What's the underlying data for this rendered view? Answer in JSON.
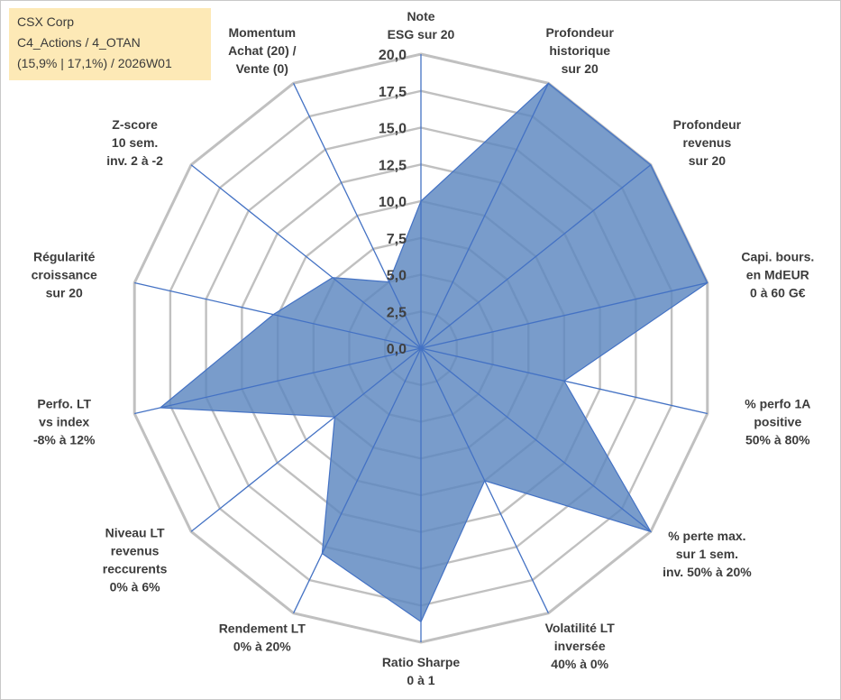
{
  "info_box": {
    "line1": "CSX Corp",
    "line2": "C4_Actions / 4_OTAN",
    "line3": "(15,9% | 17,1%) / 2026W01"
  },
  "colors": {
    "fill": "#5b86bf",
    "stroke": "#4472c4",
    "spoke": "#4472c4",
    "grid": "#c0c0c0",
    "info_bg": "#fde9b6"
  },
  "chart_data": {
    "type": "radar",
    "title": "",
    "rmin": 0,
    "rmax": 20,
    "ticks": [
      "0,0",
      "2,5",
      "5,0",
      "7,5",
      "10,0",
      "12,5",
      "15,0",
      "17,5",
      "20,0"
    ],
    "tick_values": [
      0,
      2.5,
      5,
      7.5,
      10,
      12.5,
      15,
      17.5,
      20
    ],
    "categories": [
      {
        "lines": [
          "Note",
          "ESG sur 20"
        ]
      },
      {
        "lines": [
          "Profondeur",
          "historique",
          "sur 20"
        ]
      },
      {
        "lines": [
          "Profondeur",
          "revenus",
          "sur 20"
        ]
      },
      {
        "lines": [
          "Capi. bours.",
          "en MdEUR",
          "0 à 60 G€"
        ]
      },
      {
        "lines": [
          "% perfo 1A",
          "positive",
          "50% à 80%"
        ]
      },
      {
        "lines": [
          "% perte max.",
          "sur 1 sem.",
          "inv. 50% à 20%"
        ]
      },
      {
        "lines": [
          "Volatilité LT",
          "inversée",
          "40% à 0%"
        ]
      },
      {
        "lines": [
          "Ratio Sharpe",
          "0 à 1"
        ]
      },
      {
        "lines": [
          "Rendement LT",
          "0% à 20%"
        ]
      },
      {
        "lines": [
          "Niveau LT",
          "revenus",
          "reccurents",
          "0% à 6%"
        ]
      },
      {
        "lines": [
          "Perfo. LT",
          "vs index",
          "-8% à 12%"
        ]
      },
      {
        "lines": [
          "Régularité",
          "croissance",
          "sur 20"
        ]
      },
      {
        "lines": [
          "Z-score",
          "10 sem.",
          "inv. 2 à -2"
        ]
      },
      {
        "lines": [
          "Momentum",
          "Achat (20) /",
          "Vente (0)"
        ]
      }
    ],
    "series": [
      {
        "name": "CSX Corp",
        "values": [
          10.0,
          20.0,
          20.0,
          20.0,
          10.0,
          20.0,
          10.0,
          18.6,
          15.5,
          7.5,
          18.2,
          10.3,
          7.7,
          5.0
        ]
      }
    ]
  }
}
